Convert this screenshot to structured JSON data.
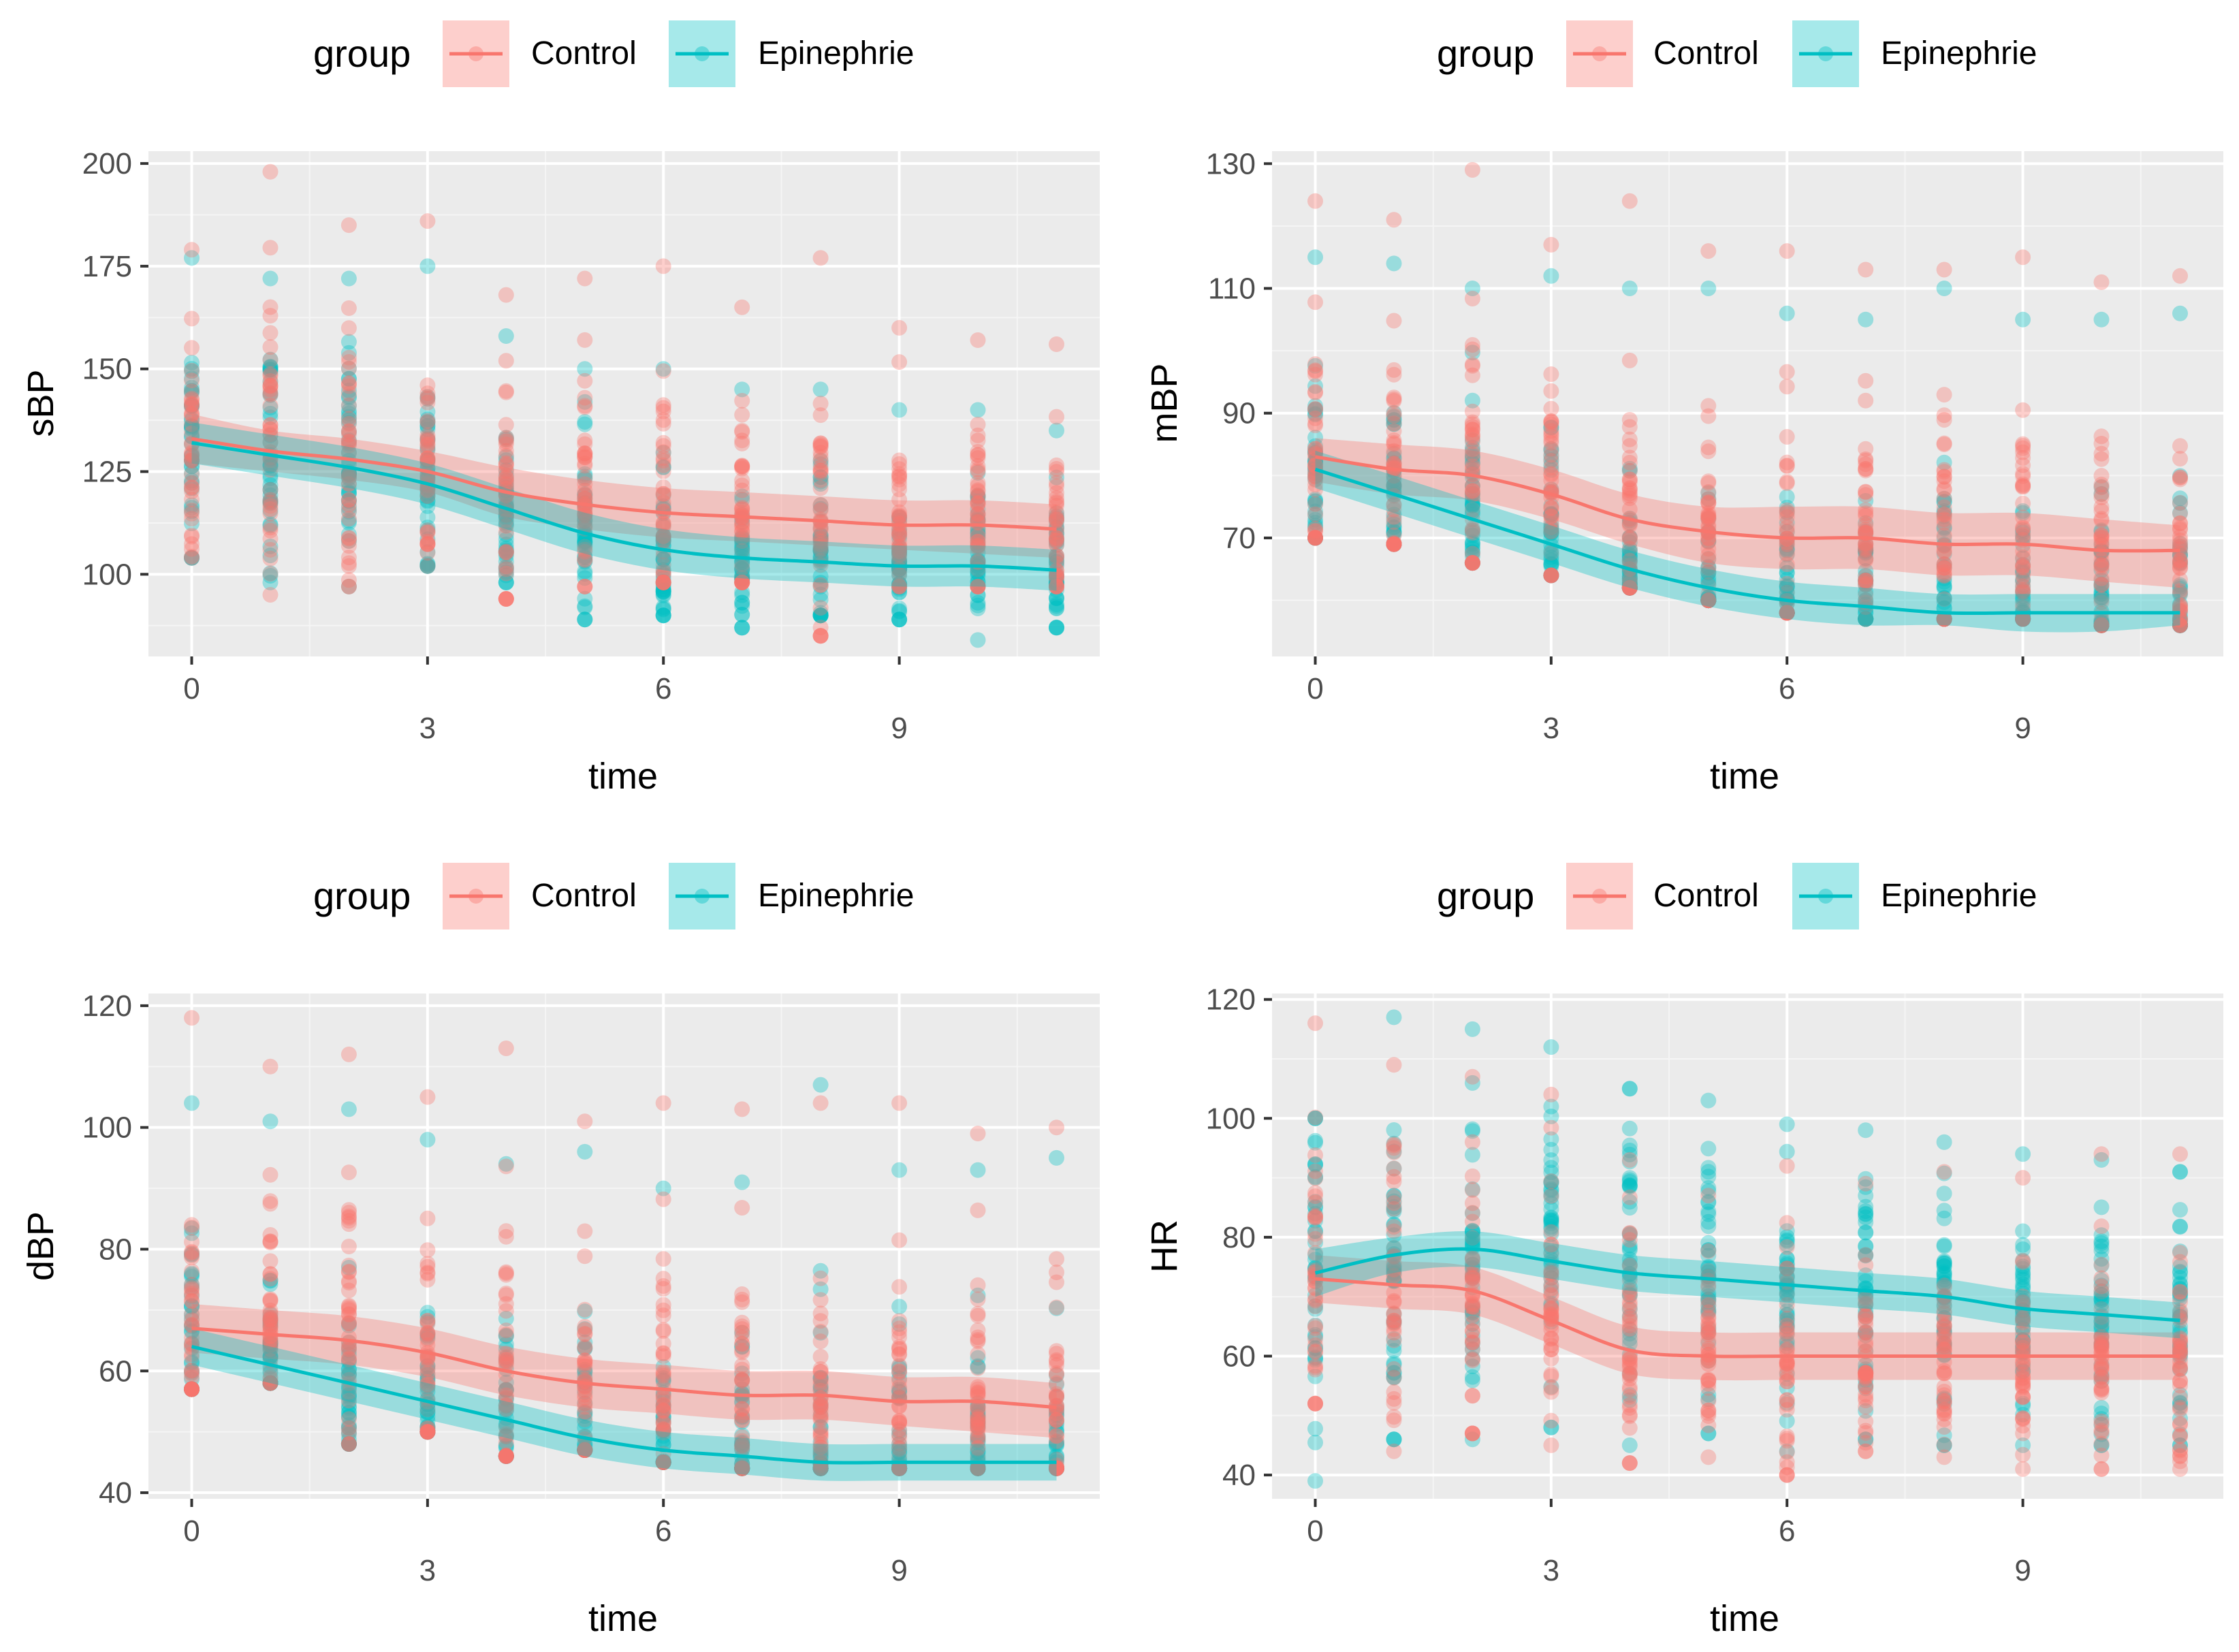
{
  "colors": {
    "control": "#F8766D",
    "epinephrie": "#00BFC4",
    "panel_bg": "#EBEBEB",
    "grid_major": "#FFFFFF",
    "grid_minor": "#F5F5F5"
  },
  "chart_data": [
    {
      "type": "scatter",
      "title": "",
      "legend": {
        "title": "group",
        "entries": [
          "Control",
          "Epinephrie"
        ],
        "position": "top"
      },
      "xlabel": "time",
      "ylabel": "sBP",
      "xlim": [
        -0.55,
        11.55
      ],
      "ylim": [
        80,
        203
      ],
      "x_ticks": [
        "0",
        "3",
        "6",
        "9"
      ],
      "x_tick_values": [
        0,
        3,
        6,
        9
      ],
      "y_ticks": [
        "100",
        "125",
        "150",
        "175",
        "200"
      ],
      "y_tick_values": [
        100,
        125,
        150,
        175,
        200
      ],
      "scatter_range": {
        "Control": {
          "lo": [
            104,
            95,
            97,
            102,
            94,
            97,
            98,
            98,
            85,
            97,
            97,
            97
          ],
          "hi": [
            179,
            198,
            185,
            186,
            168,
            172,
            175,
            165,
            177,
            160,
            157,
            156
          ],
          "center": [
            133,
            130,
            128,
            125,
            120,
            117,
            115,
            114,
            113,
            112,
            112,
            111
          ]
        },
        "Epinephrie": {
          "lo": [
            104,
            98,
            97,
            102,
            98,
            89,
            90,
            87,
            90,
            89,
            84,
            87
          ],
          "hi": [
            177,
            172,
            172,
            175,
            158,
            150,
            150,
            145,
            145,
            140,
            140,
            135
          ],
          "center": [
            132,
            129,
            126,
            122,
            116,
            110,
            106,
            104,
            103,
            102,
            102,
            101
          ]
        }
      },
      "series": [
        {
          "name": "Control",
          "x": [
            0,
            1,
            2,
            3,
            4,
            5,
            6,
            7,
            8,
            9,
            10,
            11
          ],
          "values": [
            133,
            130,
            128,
            125,
            120,
            117,
            115,
            114,
            113,
            112,
            112,
            111
          ],
          "ci_lower": [
            127,
            125,
            123,
            120,
            114,
            111,
            109,
            108,
            107,
            106,
            105,
            104
          ],
          "ci_upper": [
            139,
            135,
            133,
            130,
            126,
            123,
            121,
            120,
            119,
            118,
            118,
            117
          ]
        },
        {
          "name": "Epinephrie",
          "x": [
            0,
            1,
            2,
            3,
            4,
            5,
            6,
            7,
            8,
            9,
            10,
            11
          ],
          "values": [
            132,
            129,
            126,
            122,
            116,
            110,
            106,
            104,
            103,
            102,
            102,
            101
          ],
          "ci_lower": [
            127,
            124,
            121,
            117,
            111,
            105,
            101,
            99,
            98,
            97,
            97,
            96
          ],
          "ci_upper": [
            137,
            134,
            131,
            127,
            121,
            115,
            111,
            109,
            108,
            107,
            107,
            106
          ]
        }
      ]
    },
    {
      "type": "scatter",
      "title": "",
      "legend": {
        "title": "group",
        "entries": [
          "Control",
          "Epinephrie"
        ],
        "position": "top"
      },
      "xlabel": "time",
      "ylabel": "mBP",
      "xlim": [
        -0.55,
        11.55
      ],
      "ylim": [
        51,
        132
      ],
      "x_ticks": [
        "0",
        "3",
        "6",
        "9"
      ],
      "x_tick_values": [
        0,
        3,
        6,
        9
      ],
      "y_ticks": [
        "70",
        "90",
        "110",
        "130"
      ],
      "y_tick_values": [
        70,
        90,
        110,
        130
      ],
      "scatter_range": {
        "Control": {
          "lo": [
            70,
            69,
            66,
            64,
            62,
            60,
            58,
            57,
            57,
            57,
            56,
            56
          ],
          "hi": [
            124,
            121,
            129,
            117,
            124,
            116,
            116,
            113,
            113,
            115,
            111,
            112
          ],
          "center": [
            83,
            81,
            80,
            77,
            73,
            71,
            70,
            70,
            69,
            69,
            68,
            68
          ]
        },
        "Epinephrie": {
          "lo": [
            70,
            69,
            66,
            64,
            62,
            60,
            58,
            57,
            57,
            57,
            56,
            56
          ],
          "hi": [
            115,
            114,
            110,
            112,
            110,
            110,
            106,
            105,
            110,
            105,
            105,
            106
          ],
          "center": [
            81,
            77,
            73,
            69,
            65,
            62,
            60,
            59,
            58,
            58,
            58,
            58
          ]
        }
      },
      "series": [
        {
          "name": "Control",
          "x": [
            0,
            1,
            2,
            3,
            4,
            5,
            6,
            7,
            8,
            9,
            10,
            11
          ],
          "values": [
            83,
            81,
            80,
            77,
            73,
            71,
            70,
            70,
            69,
            69,
            68,
            68
          ],
          "ci_lower": [
            79,
            77,
            76,
            73,
            69,
            66,
            65,
            65,
            64,
            64,
            63,
            62
          ],
          "ci_upper": [
            86,
            85,
            84,
            81,
            77,
            75,
            75,
            75,
            74,
            74,
            73,
            72
          ]
        },
        {
          "name": "Epinephrie",
          "x": [
            0,
            1,
            2,
            3,
            4,
            5,
            6,
            7,
            8,
            9,
            10,
            11
          ],
          "values": [
            81,
            77,
            73,
            69,
            65,
            62,
            60,
            59,
            58,
            58,
            58,
            58
          ],
          "ci_lower": [
            78,
            74,
            70,
            66,
            62,
            59,
            57,
            56,
            56,
            55,
            55,
            56
          ],
          "ci_upper": [
            84,
            80,
            76,
            72,
            68,
            65,
            63,
            62,
            61,
            61,
            61,
            61
          ]
        }
      ]
    },
    {
      "type": "scatter",
      "title": "",
      "legend": {
        "title": "group",
        "entries": [
          "Control",
          "Epinephrie"
        ],
        "position": "top"
      },
      "xlabel": "time",
      "ylabel": "dBP",
      "xlim": [
        -0.55,
        11.55
      ],
      "ylim": [
        39,
        122
      ],
      "x_ticks": [
        "0",
        "3",
        "6",
        "9"
      ],
      "x_tick_values": [
        0,
        3,
        6,
        9
      ],
      "y_ticks": [
        "40",
        "60",
        "80",
        "100",
        "120"
      ],
      "y_tick_values": [
        40,
        60,
        80,
        100,
        120
      ],
      "scatter_range": {
        "Control": {
          "lo": [
            57,
            58,
            48,
            50,
            46,
            47,
            45,
            44,
            44,
            44,
            44,
            44
          ],
          "hi": [
            118,
            110,
            112,
            105,
            113,
            101,
            104,
            103,
            104,
            104,
            99,
            100
          ],
          "center": [
            67,
            66,
            65,
            63,
            60,
            58,
            57,
            56,
            56,
            55,
            55,
            54
          ]
        },
        "Epinephrie": {
          "lo": [
            57,
            58,
            48,
            50,
            46,
            47,
            45,
            44,
            44,
            44,
            44,
            44
          ],
          "hi": [
            104,
            101,
            103,
            98,
            94,
            96,
            90,
            91,
            107,
            93,
            93,
            95
          ],
          "center": [
            64,
            61,
            58,
            55,
            52,
            49,
            47,
            46,
            45,
            45,
            45,
            45
          ]
        }
      },
      "series": [
        {
          "name": "Control",
          "x": [
            0,
            1,
            2,
            3,
            4,
            5,
            6,
            7,
            8,
            9,
            10,
            11
          ],
          "values": [
            67,
            66,
            65,
            63,
            60,
            58,
            57,
            56,
            56,
            55,
            55,
            54
          ],
          "ci_lower": [
            63,
            62,
            61,
            59,
            56,
            54,
            53,
            52,
            52,
            51,
            50,
            49
          ],
          "ci_upper": [
            71,
            70,
            69,
            67,
            64,
            62,
            61,
            60,
            60,
            59,
            59,
            58
          ]
        },
        {
          "name": "Epinephrie",
          "x": [
            0,
            1,
            2,
            3,
            4,
            5,
            6,
            7,
            8,
            9,
            10,
            11
          ],
          "values": [
            64,
            61,
            58,
            55,
            52,
            49,
            47,
            46,
            45,
            45,
            45,
            45
          ],
          "ci_lower": [
            61,
            58,
            55,
            52,
            49,
            46,
            44,
            43,
            42,
            42,
            42,
            42
          ],
          "ci_upper": [
            67,
            64,
            61,
            58,
            55,
            52,
            50,
            49,
            48,
            48,
            48,
            48
          ]
        }
      ]
    },
    {
      "type": "scatter",
      "title": "",
      "legend": {
        "title": "group",
        "entries": [
          "Control",
          "Epinephrie"
        ],
        "position": "top"
      },
      "xlabel": "time",
      "ylabel": "HR",
      "xlim": [
        -0.55,
        11.55
      ],
      "ylim": [
        36,
        121
      ],
      "x_ticks": [
        "0",
        "3",
        "6",
        "9"
      ],
      "x_tick_values": [
        0,
        3,
        6,
        9
      ],
      "y_ticks": [
        "40",
        "60",
        "80",
        "100",
        "120"
      ],
      "y_tick_values": [
        40,
        60,
        80,
        100,
        120
      ],
      "scatter_range": {
        "Control": {
          "lo": [
            52,
            44,
            47,
            45,
            42,
            43,
            40,
            44,
            43,
            41,
            41,
            41
          ],
          "hi": [
            116,
            109,
            107,
            104,
            93,
            87,
            92,
            89,
            91,
            90,
            94,
            94
          ],
          "center": [
            73,
            72,
            71,
            66,
            61,
            60,
            60,
            60,
            60,
            60,
            60,
            60
          ]
        },
        "Epinephrie": {
          "lo": [
            39,
            46,
            46,
            48,
            45,
            47,
            44,
            46,
            45,
            45,
            45,
            45
          ],
          "hi": [
            100,
            117,
            115,
            112,
            105,
            103,
            99,
            98,
            96,
            94,
            93,
            91
          ],
          "center": [
            74,
            77,
            78,
            76,
            74,
            73,
            72,
            71,
            70,
            68,
            67,
            66
          ]
        }
      },
      "series": [
        {
          "name": "Control",
          "x": [
            0,
            1,
            2,
            3,
            4,
            5,
            6,
            7,
            8,
            9,
            10,
            11
          ],
          "values": [
            73,
            72,
            71,
            66,
            61,
            60,
            60,
            60,
            60,
            60,
            60,
            60
          ],
          "ci_lower": [
            69,
            68,
            67,
            62,
            57,
            56,
            56,
            56,
            56,
            56,
            56,
            56
          ],
          "ci_upper": [
            77,
            76,
            75,
            70,
            65,
            64,
            64,
            64,
            64,
            64,
            64,
            64
          ]
        },
        {
          "name": "Epinephrie",
          "x": [
            0,
            1,
            2,
            3,
            4,
            5,
            6,
            7,
            8,
            9,
            10,
            11
          ],
          "values": [
            74,
            77,
            78,
            76,
            74,
            73,
            72,
            71,
            70,
            68,
            67,
            66
          ],
          "ci_lower": [
            70,
            74,
            75,
            73,
            71,
            70,
            69,
            68,
            67,
            65,
            64,
            63
          ],
          "ci_upper": [
            78,
            80,
            81,
            79,
            77,
            76,
            75,
            74,
            73,
            71,
            70,
            69
          ]
        }
      ]
    }
  ]
}
